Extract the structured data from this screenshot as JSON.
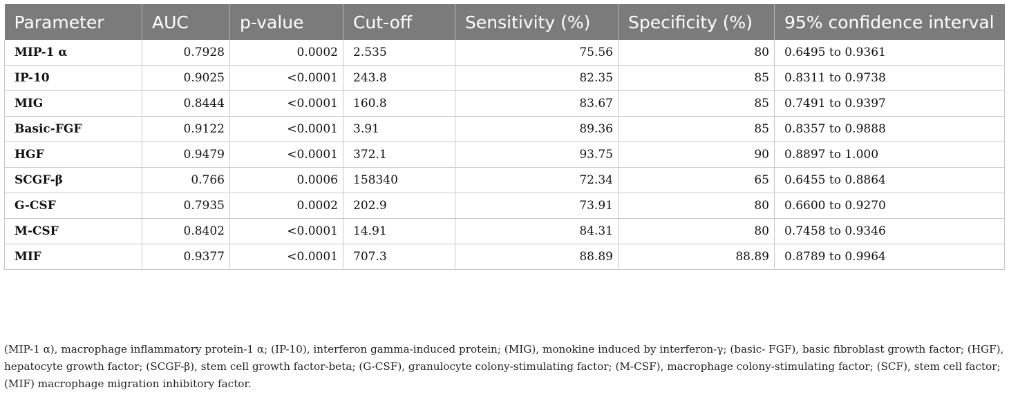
{
  "table": {
    "headers": [
      "Parameter",
      "AUC",
      "p-value",
      "Cut-off",
      "Sensitivity (%)",
      "Specificity (%)",
      "95% confidence interval"
    ],
    "rows": [
      [
        "MIP-1 α",
        "0.7928",
        "0.0002",
        "2.535",
        "75.56",
        "80",
        "0.6495 to 0.9361"
      ],
      [
        "IP-10",
        "0.9025",
        "<0.0001",
        "243.8",
        "82.35",
        "85",
        "0.8311 to 0.9738"
      ],
      [
        "MIG",
        "0.8444",
        "<0.0001",
        "160.8",
        "83.67",
        "85",
        "0.7491 to 0.9397"
      ],
      [
        "Basic-FGF",
        "0.9122",
        "<0.0001",
        "3.91",
        "89.36",
        "85",
        "0.8357 to 0.9888"
      ],
      [
        "HGF",
        "0.9479",
        "<0.0001",
        "372.1",
        "93.75",
        "90",
        "0.8897 to 1.000"
      ],
      [
        "SCGF-β",
        "0.766",
        "0.0006",
        "158340",
        "72.34",
        "65",
        "0.6455 to 0.8864"
      ],
      [
        "G-CSF",
        "0.7935",
        "0.0002",
        "202.9",
        "73.91",
        "80",
        "0.6600 to 0.9270"
      ],
      [
        "M-CSF",
        "0.8402",
        "<0.0001",
        "14.91",
        "84.31",
        "80",
        "0.7458 to 0.9346"
      ],
      [
        "MIF",
        "0.9377",
        "<0.0001",
        "707.3",
        "88.89",
        "88.89",
        "0.8789 to 0.9964"
      ]
    ]
  },
  "footnote": "(MIP-1 α), macrophage inflammatory protein-1 α; (IP-10), interferon gamma-induced protein; (MIG), monokine induced by interferon-γ; (basic- FGF), basic fibroblast growth factor; (HGF), hepatocyte growth factor; (SCGF-β), stem cell growth factor-beta; (G-CSF), granulocyte colony-stimulating factor; (M-CSF), macrophage colony-stimulating factor; (SCF), stem cell factor; (MIF) macrophage migration inhibitory factor.",
  "colors": {
    "header_bg": "#7b7b7b",
    "header_text": "#ffffff",
    "grid": "#c8c8c8"
  }
}
